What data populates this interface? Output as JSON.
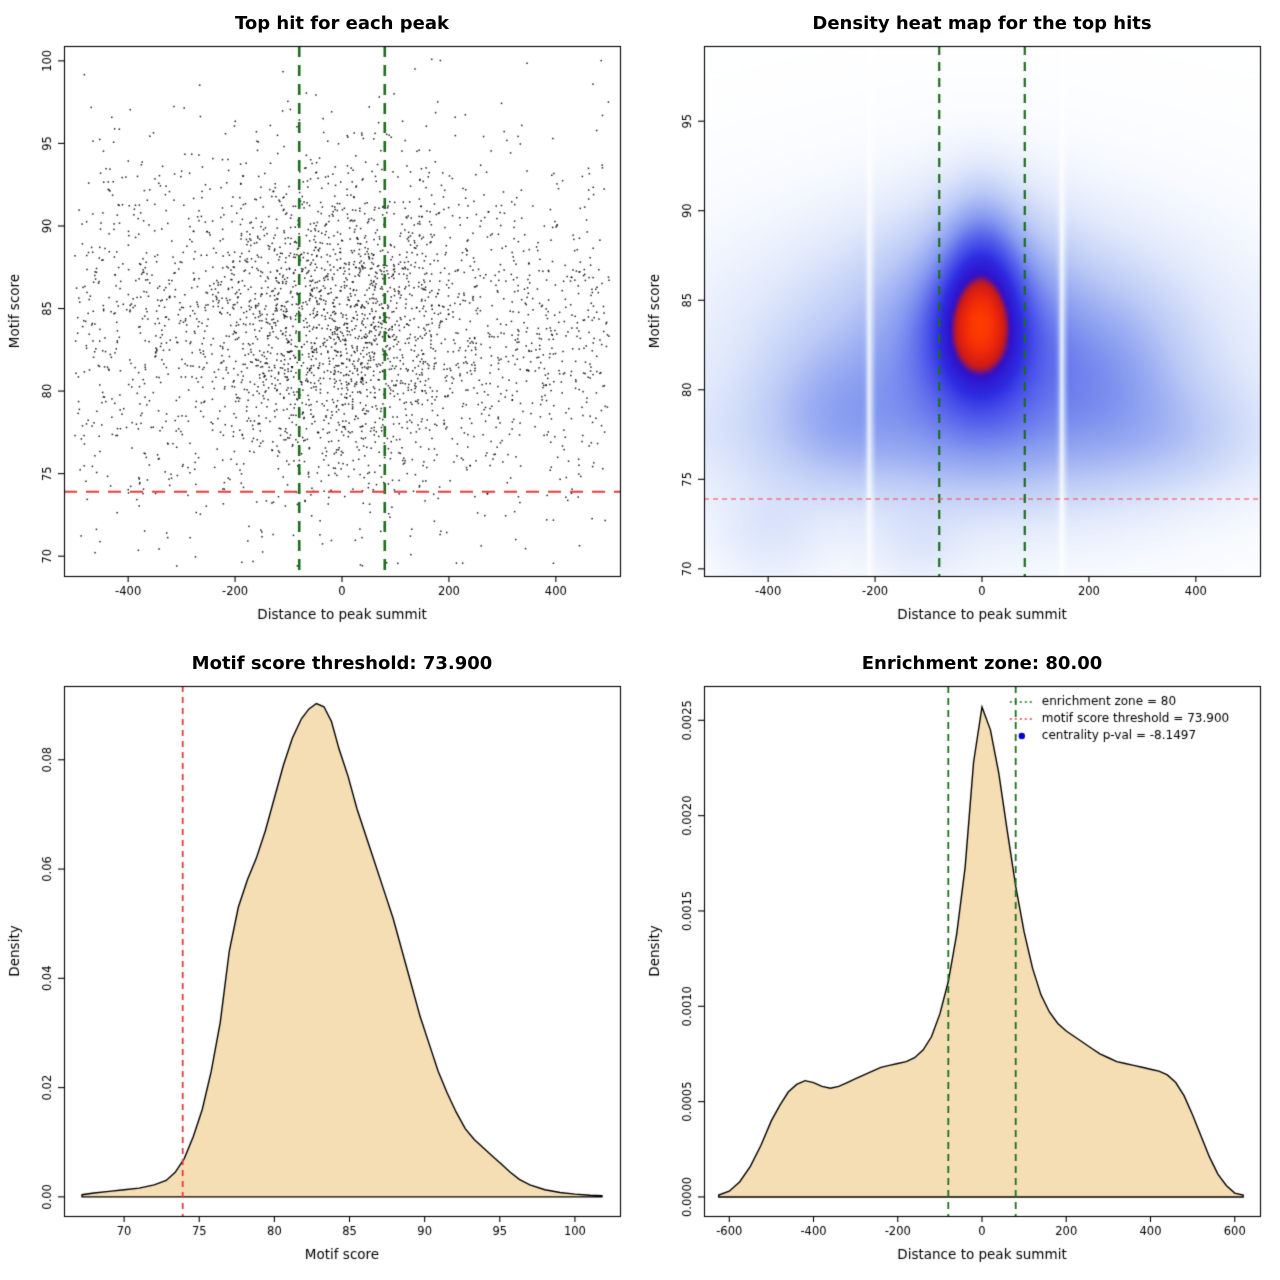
{
  "figure": {
    "background": "#ffffff",
    "colors": {
      "enrichment_line": "#1b6e1b",
      "threshold_line": "#e23b3b",
      "density_fill": "#f5deb3",
      "density_stroke": "#000000",
      "point_color": "#000000",
      "legend_point": "#0000cc"
    }
  },
  "chart_data": [
    {
      "type": "scatter",
      "title": "Top hit for each peak",
      "xlabel": "Distance to peak summit",
      "ylabel": "Motif score",
      "xlim": [
        -520,
        520
      ],
      "ylim": [
        68.8,
        100.9
      ],
      "xticks": [
        -400,
        -200,
        0,
        200,
        400
      ],
      "yticks": [
        70,
        75,
        80,
        85,
        90,
        95,
        100
      ],
      "ytick_decimals": 0,
      "vlines": {
        "values": [
          -80,
          80
        ],
        "color": "#1b6e1b",
        "dash": [
          11,
          8
        ],
        "width": 2.6
      },
      "hlines": {
        "values": [
          73.9
        ],
        "color": "#e23b3b",
        "dash": [
          13,
          9
        ],
        "width": 2
      },
      "points": {
        "seed": 7,
        "n": 3400,
        "x_range": [
          -500,
          500
        ],
        "cluster_frac": 0.42,
        "cluster_sd_x": 125,
        "cluster_score_mean": 84.3,
        "cluster_score_sd": 4.8,
        "bg_score_mean": 83.6,
        "bg_score_sd": 5.6,
        "score_min": 69.4,
        "score_max": 100.2
      }
    },
    {
      "type": "heatmap",
      "title": "Density heat map for the top hits",
      "xlabel": "Distance to peak summit",
      "ylabel": "Motif score",
      "xlim": [
        -520,
        520
      ],
      "ylim": [
        69.6,
        99.2
      ],
      "xticks": [
        -400,
        -200,
        0,
        200,
        400
      ],
      "yticks": [
        70,
        75,
        80,
        85,
        90,
        95
      ],
      "ytick_decimals": 0,
      "vlines": {
        "values": [
          -80,
          80
        ],
        "color": "#1b6e1b",
        "dash": [
          9,
          7
        ],
        "width": 2.2
      },
      "hlines": {
        "values": [
          73.9
        ],
        "color": "#ff4040",
        "dash": [
          5,
          4
        ],
        "width": 1.2
      },
      "gamma": 0.6,
      "stripe_strength": 0.92,
      "stripe_sigma": 4.5,
      "white_stripes": [
        -210,
        150
      ],
      "density_components": [
        {
          "w": 1.0,
          "mx": -5,
          "sx": 48,
          "my": 83.3,
          "sy": 2.2
        },
        {
          "w": 0.55,
          "mx": 0,
          "sx": 46,
          "my": 86.6,
          "sy": 2.7
        },
        {
          "w": 0.6,
          "mx": 0,
          "sx": 95,
          "my": 83.0,
          "sy": 3.8
        },
        {
          "w": 0.3,
          "mx": 0,
          "sx": 200,
          "my": 82.0,
          "sy": 4.5
        },
        {
          "w": 0.22,
          "mx": 0,
          "sx": 330,
          "my": 81.0,
          "sy": 5.0
        },
        {
          "w": 0.24,
          "mx": 240,
          "sx": 90,
          "my": 80.5,
          "sy": 3.2
        },
        {
          "w": 0.2,
          "mx": -270,
          "sx": 85,
          "my": 78.8,
          "sy": 2.6
        },
        {
          "w": 0.14,
          "mx": 0,
          "sx": 380,
          "my": 77.2,
          "sy": 2.2
        },
        {
          "w": 0.09,
          "mx": -400,
          "sx": 70,
          "my": 72.0,
          "sy": 1.9
        },
        {
          "w": 0.07,
          "mx": -120,
          "sx": 60,
          "my": 71.3,
          "sy": 1.5
        },
        {
          "w": 0.08,
          "mx": 380,
          "sx": 80,
          "my": 77.5,
          "sy": 2.0
        }
      ],
      "colormap": [
        [
          0.0,
          "#ffffff"
        ],
        [
          0.06,
          "#f6f9fe"
        ],
        [
          0.15,
          "#e1e9fb"
        ],
        [
          0.28,
          "#bac9f6"
        ],
        [
          0.42,
          "#879bf0"
        ],
        [
          0.55,
          "#5460eb"
        ],
        [
          0.68,
          "#2d2be2"
        ],
        [
          0.8,
          "#3010c8"
        ],
        [
          0.85,
          "#c81919"
        ],
        [
          0.93,
          "#ee2808"
        ],
        [
          1.0,
          "#ff3c00"
        ]
      ]
    },
    {
      "type": "density",
      "title": "Motif score threshold: 73.900",
      "xlabel": "Motif score",
      "ylabel": "Density",
      "xlim": [
        66.0,
        103.0
      ],
      "ylim": [
        -0.0035,
        0.0935
      ],
      "xticks": [
        70,
        75,
        80,
        85,
        90,
        95,
        100
      ],
      "yticks": [
        0,
        0.02,
        0.04,
        0.06,
        0.08
      ],
      "ytick_decimals": 2,
      "vlines": {
        "values": [
          73.9
        ],
        "color": "#e23b3b",
        "dash": [
          6,
          5
        ],
        "width": 1.8
      },
      "curve": {
        "x": [
          67.2,
          68,
          69,
          70,
          71,
          72,
          72.8,
          73.4,
          74,
          74.6,
          75.2,
          75.8,
          76.4,
          77,
          77.6,
          78.2,
          78.8,
          79.4,
          80,
          80.6,
          81.2,
          81.8,
          82.3,
          82.8,
          83.3,
          83.8,
          84.3,
          84.9,
          85.5,
          86.1,
          86.7,
          87.3,
          87.9,
          88.5,
          89.1,
          89.7,
          90.3,
          90.9,
          91.5,
          92.1,
          92.7,
          93.3,
          93.9,
          94.5,
          95.1,
          95.7,
          96.3,
          97,
          98,
          99,
          100,
          101,
          101.8
        ],
        "y": [
          0.0004,
          0.0007,
          0.001,
          0.0013,
          0.0016,
          0.0022,
          0.003,
          0.0045,
          0.007,
          0.011,
          0.016,
          0.023,
          0.032,
          0.045,
          0.053,
          0.058,
          0.062,
          0.067,
          0.073,
          0.079,
          0.084,
          0.0875,
          0.0893,
          0.0903,
          0.0897,
          0.087,
          0.082,
          0.077,
          0.071,
          0.066,
          0.061,
          0.056,
          0.051,
          0.045,
          0.039,
          0.033,
          0.028,
          0.023,
          0.019,
          0.0155,
          0.0125,
          0.0105,
          0.009,
          0.0075,
          0.006,
          0.0045,
          0.0032,
          0.0022,
          0.0013,
          0.0008,
          0.0005,
          0.0003,
          0.0002
        ]
      }
    },
    {
      "type": "density",
      "title": "Enrichment zone: 80.00",
      "xlabel": "Distance to peak summit",
      "ylabel": "Density",
      "xlim": [
        -660,
        660
      ],
      "ylim": [
        -0.0001,
        0.00268
      ],
      "xticks": [
        -600,
        -400,
        -200,
        0,
        200,
        400,
        600
      ],
      "yticks": [
        0,
        0.0005,
        0.001,
        0.0015,
        0.002,
        0.0025
      ],
      "ytick_decimals": 4,
      "vlines": {
        "values": [
          -80,
          80
        ],
        "color": "#1b6e1b",
        "dash": [
          7,
          5
        ],
        "width": 1.8
      },
      "curve": {
        "x": [
          -625,
          -600,
          -575,
          -550,
          -525,
          -500,
          -480,
          -460,
          -440,
          -420,
          -400,
          -380,
          -360,
          -340,
          -320,
          -300,
          -280,
          -260,
          -240,
          -220,
          -200,
          -180,
          -160,
          -140,
          -120,
          -100,
          -80,
          -60,
          -40,
          -20,
          0,
          20,
          40,
          60,
          80,
          100,
          120,
          140,
          160,
          180,
          200,
          220,
          240,
          260,
          280,
          300,
          320,
          340,
          360,
          380,
          400,
          420,
          440,
          460,
          480,
          500,
          520,
          540,
          560,
          580,
          600,
          620
        ],
        "y": [
          1e-05,
          3e-05,
          8e-05,
          0.00016,
          0.00027,
          0.0004,
          0.00048,
          0.00055,
          0.00059,
          0.00061,
          0.0006,
          0.00058,
          0.00057,
          0.00058,
          0.0006,
          0.00062,
          0.00064,
          0.00066,
          0.00068,
          0.00069,
          0.0007,
          0.00071,
          0.00073,
          0.00077,
          0.00084,
          0.00096,
          0.00113,
          0.00138,
          0.00173,
          0.00228,
          0.00257,
          0.00245,
          0.00222,
          0.00192,
          0.00163,
          0.00139,
          0.0012,
          0.00106,
          0.00097,
          0.00091,
          0.00087,
          0.00084,
          0.00081,
          0.00078,
          0.00075,
          0.00073,
          0.00071,
          0.0007,
          0.00069,
          0.00068,
          0.00067,
          0.00066,
          0.00064,
          0.0006,
          0.00053,
          0.00043,
          0.00032,
          0.00021,
          0.00012,
          6e-05,
          2e-05,
          1e-05
        ]
      },
      "legend": {
        "items": [
          {
            "type": "line",
            "color": "#1b6e1b",
            "label": "enrichment zone = 80"
          },
          {
            "type": "line",
            "color": "#e23b3b",
            "label": "motif score threshold = 73.900"
          },
          {
            "type": "point",
            "color": "#0000cc",
            "label": "centrality p-val = -8.1497"
          }
        ]
      }
    }
  ]
}
